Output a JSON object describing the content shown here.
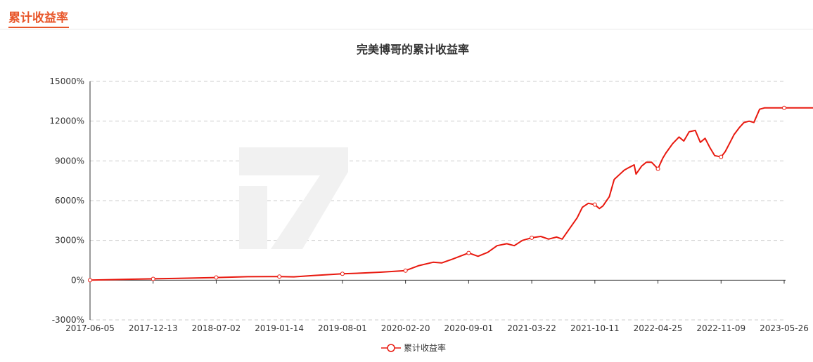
{
  "tab": {
    "label": "累计收益率"
  },
  "colors": {
    "accent": "#e8562a",
    "series": "#e8190f",
    "grid": "#cccccc",
    "axis": "#333333"
  },
  "chart_data": {
    "type": "line",
    "title": "完美博哥的累计收益率",
    "xlabel": "",
    "ylabel": "",
    "ylim": [
      -3000,
      15000
    ],
    "y_ticks": [
      "-3000%",
      "0%",
      "3000%",
      "6000%",
      "9000%",
      "12000%",
      "15000%"
    ],
    "y_tick_values": [
      -3000,
      0,
      3000,
      6000,
      9000,
      12000,
      15000
    ],
    "x_ticks": [
      "2017-06-05",
      "2017-12-13",
      "2018-07-02",
      "2019-01-14",
      "2019-08-01",
      "2020-02-20",
      "2020-09-01",
      "2021-03-22",
      "2021-10-11",
      "2022-04-25",
      "2022-11-09",
      "2023-05-26"
    ],
    "grid": true,
    "legend_position": "bottom",
    "series": [
      {
        "name": "累计收益率",
        "x": [
          "2017-06-05",
          "2017-09-01",
          "2017-12-13",
          "2018-04-01",
          "2018-07-02",
          "2018-10-08",
          "2019-01-14",
          "2019-03-01",
          "2019-05-01",
          "2019-08-01",
          "2019-10-01",
          "2019-12-01",
          "2020-02-20",
          "2020-04-01",
          "2020-05-15",
          "2020-06-10",
          "2020-07-15",
          "2020-08-05",
          "2020-09-01",
          "2020-10-01",
          "2020-11-01",
          "2020-12-01",
          "2021-01-01",
          "2021-01-25",
          "2021-02-20",
          "2021-03-22",
          "2021-04-20",
          "2021-05-15",
          "2021-06-10",
          "2021-06-28",
          "2021-07-25",
          "2021-08-15",
          "2021-09-01",
          "2021-09-20",
          "2021-10-11",
          "2021-10-25",
          "2021-11-05",
          "2021-11-25",
          "2021-12-10",
          "2021-12-28",
          "2022-01-10",
          "2022-01-25",
          "2022-02-10",
          "2022-02-16",
          "2022-03-05",
          "2022-03-20",
          "2022-04-05",
          "2022-04-25",
          "2022-05-10",
          "2022-05-20",
          "2022-06-10",
          "2022-06-30",
          "2022-07-15",
          "2022-08-01",
          "2022-08-20",
          "2022-09-05",
          "2022-09-20",
          "2022-10-05",
          "2022-10-20",
          "2022-11-09",
          "2022-11-22",
          "2022-12-05",
          "2022-12-20",
          "2023-01-05",
          "2023-01-20",
          "2023-02-05",
          "2023-02-20",
          "2023-03-10",
          "2023-03-25",
          "2023-04-10",
          "2023-04-25",
          "2023-05-10",
          "2023-05-26",
          "2023-06-15",
          "2023-07-05",
          "2023-07-25",
          "2023-08-10",
          "2023-08-25",
          "2023-09-05"
        ],
        "values": [
          0,
          50,
          100,
          150,
          200,
          260,
          270,
          250,
          350,
          480,
          530,
          600,
          720,
          1100,
          1350,
          1300,
          1600,
          1800,
          2050,
          1800,
          2100,
          2600,
          2750,
          2600,
          3000,
          3200,
          3300,
          3100,
          3250,
          3100,
          4000,
          4700,
          5500,
          5800,
          5700,
          5400,
          5600,
          6300,
          7600,
          8000,
          8300,
          8500,
          8700,
          8000,
          8600,
          8900,
          8900,
          8400,
          9200,
          9600,
          10300,
          10800,
          10500,
          11200,
          11300,
          10400,
          10700,
          10000,
          9400,
          9300,
          9700,
          10300,
          11000,
          11500,
          11900,
          12000,
          11900,
          12900,
          13000,
          13000,
          13000,
          13000,
          13000,
          13000,
          13000,
          13000,
          13000,
          13000,
          13000
        ]
      }
    ]
  }
}
